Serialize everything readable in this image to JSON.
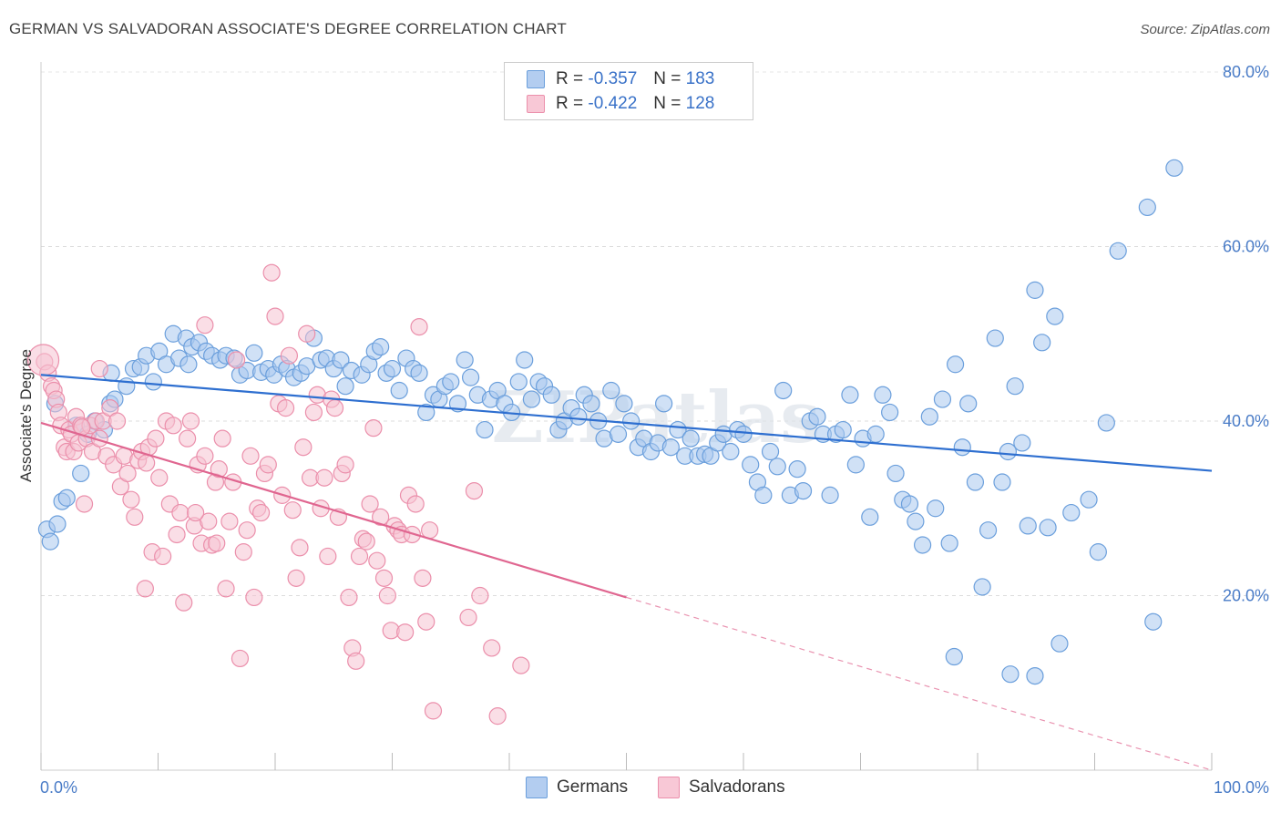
{
  "title": "GERMAN VS SALVADORAN ASSOCIATE'S DEGREE CORRELATION CHART",
  "source": "Source: ZipAtlas.com",
  "watermark": "ZIPatlas",
  "legend": {
    "germans": {
      "r_label": "R =",
      "r_value": "-0.357",
      "n_label": "N =",
      "n_value": "183"
    },
    "salvadorans": {
      "r_label": "R =",
      "r_value": "-0.422",
      "n_label": "N =",
      "n_value": "128"
    }
  },
  "colors": {
    "german_fill": "#a9c8ef",
    "german_stroke": "#6b9fdc",
    "german_line": "#2e6fd0",
    "salvadoran_fill": "#f6c2d1",
    "salvadoran_stroke": "#eb8fab",
    "salvadoran_line": "#e06690",
    "tick_text": "#4a7cc7"
  },
  "chart_data": {
    "type": "scatter",
    "title": "GERMAN VS SALVADORAN ASSOCIATE'S DEGREE CORRELATION CHART",
    "xlabel": "",
    "ylabel": "Associate's Degree",
    "xlim": [
      0,
      100
    ],
    "ylim": [
      0,
      80
    ],
    "x_tick_labels": [
      "0.0%",
      "100.0%"
    ],
    "y_ticks": [
      20,
      40,
      60,
      80
    ],
    "y_tick_labels": [
      "20.0%",
      "40.0%",
      "60.0%",
      "80.0%"
    ],
    "grid": "horizontal dashed",
    "legend_position": "top-center",
    "series": [
      {
        "name": "Germans",
        "trend": {
          "x": [
            0,
            100
          ],
          "y": [
            45.3,
            34.3
          ],
          "dashed_from_x": null
        },
        "points": [
          [
            0.5,
            27.6
          ],
          [
            0.8,
            26.2
          ],
          [
            1.4,
            28.2
          ],
          [
            1.8,
            30.8
          ],
          [
            2.2,
            31.2
          ],
          [
            3.0,
            39.5
          ],
          [
            3.4,
            34.0
          ],
          [
            4.0,
            38.5
          ],
          [
            4.6,
            40.0
          ],
          [
            5.4,
            39.0
          ],
          [
            5.9,
            42.0
          ],
          [
            6.3,
            42.5
          ],
          [
            7.3,
            44.0
          ],
          [
            7.9,
            46.0
          ],
          [
            8.5,
            46.2
          ],
          [
            9.0,
            47.5
          ],
          [
            9.6,
            44.5
          ],
          [
            10.1,
            48.0
          ],
          [
            10.7,
            46.5
          ],
          [
            11.3,
            50.0
          ],
          [
            11.8,
            47.2
          ],
          [
            12.4,
            49.5
          ],
          [
            12.9,
            48.5
          ],
          [
            13.5,
            49.0
          ],
          [
            14.1,
            48.0
          ],
          [
            14.6,
            47.5
          ],
          [
            15.3,
            47.0
          ],
          [
            15.8,
            47.5
          ],
          [
            16.5,
            47.2
          ],
          [
            17.0,
            45.3
          ],
          [
            17.6,
            45.8
          ],
          [
            18.2,
            47.8
          ],
          [
            18.8,
            45.6
          ],
          [
            19.4,
            46.0
          ],
          [
            19.9,
            45.3
          ],
          [
            20.5,
            46.5
          ],
          [
            21.0,
            46.0
          ],
          [
            21.6,
            45.0
          ],
          [
            22.2,
            45.5
          ],
          [
            22.7,
            46.3
          ],
          [
            23.3,
            49.5
          ],
          [
            23.9,
            47.0
          ],
          [
            24.4,
            47.2
          ],
          [
            25.0,
            46.0
          ],
          [
            25.6,
            47.0
          ],
          [
            26.0,
            44.0
          ],
          [
            26.5,
            45.8
          ],
          [
            27.4,
            45.3
          ],
          [
            28.0,
            46.5
          ],
          [
            28.5,
            48.0
          ],
          [
            29.0,
            48.5
          ],
          [
            29.5,
            45.5
          ],
          [
            30.0,
            46.0
          ],
          [
            30.6,
            43.5
          ],
          [
            31.2,
            47.2
          ],
          [
            31.8,
            46.0
          ],
          [
            32.3,
            45.5
          ],
          [
            32.9,
            41.0
          ],
          [
            33.5,
            43.0
          ],
          [
            34.0,
            42.5
          ],
          [
            34.5,
            44.0
          ],
          [
            35.0,
            44.5
          ],
          [
            35.6,
            42.0
          ],
          [
            36.2,
            47.0
          ],
          [
            36.7,
            45.0
          ],
          [
            37.3,
            43.0
          ],
          [
            37.9,
            39.0
          ],
          [
            38.4,
            42.5
          ],
          [
            39.0,
            43.5
          ],
          [
            39.6,
            42.0
          ],
          [
            40.2,
            41.0
          ],
          [
            40.8,
            44.5
          ],
          [
            41.3,
            47.0
          ],
          [
            41.9,
            42.5
          ],
          [
            42.5,
            44.5
          ],
          [
            43.0,
            44.0
          ],
          [
            43.6,
            43.0
          ],
          [
            44.2,
            39.0
          ],
          [
            44.7,
            40.0
          ],
          [
            45.3,
            41.5
          ],
          [
            45.9,
            40.5
          ],
          [
            46.4,
            43.0
          ],
          [
            47.0,
            42.0
          ],
          [
            47.6,
            40.0
          ],
          [
            48.1,
            38.0
          ],
          [
            48.7,
            43.5
          ],
          [
            49.3,
            38.5
          ],
          [
            49.8,
            42.0
          ],
          [
            50.4,
            40.0
          ],
          [
            51.0,
            37.0
          ],
          [
            51.5,
            38.0
          ],
          [
            52.1,
            36.5
          ],
          [
            52.7,
            37.5
          ],
          [
            53.2,
            42.0
          ],
          [
            53.8,
            37.0
          ],
          [
            54.4,
            39.0
          ],
          [
            55.0,
            36.0
          ],
          [
            55.5,
            38.0
          ],
          [
            56.1,
            36.0
          ],
          [
            56.7,
            36.2
          ],
          [
            57.2,
            36.0
          ],
          [
            57.8,
            37.5
          ],
          [
            58.3,
            38.5
          ],
          [
            58.9,
            36.5
          ],
          [
            59.5,
            39.0
          ],
          [
            60.0,
            38.5
          ],
          [
            60.6,
            35.0
          ],
          [
            61.2,
            33.0
          ],
          [
            61.7,
            31.5
          ],
          [
            62.3,
            36.5
          ],
          [
            62.9,
            34.8
          ],
          [
            63.4,
            43.5
          ],
          [
            64.0,
            31.5
          ],
          [
            64.6,
            34.5
          ],
          [
            65.1,
            32.0
          ],
          [
            65.7,
            40.0
          ],
          [
            66.3,
            40.5
          ],
          [
            66.8,
            38.5
          ],
          [
            67.4,
            31.5
          ],
          [
            67.9,
            38.5
          ],
          [
            68.5,
            39.0
          ],
          [
            69.1,
            43.0
          ],
          [
            69.6,
            35.0
          ],
          [
            70.2,
            38.0
          ],
          [
            70.8,
            29.0
          ],
          [
            71.3,
            38.5
          ],
          [
            71.9,
            43.0
          ],
          [
            72.5,
            41.0
          ],
          [
            73.0,
            34.0
          ],
          [
            73.6,
            31.0
          ],
          [
            74.2,
            30.5
          ],
          [
            74.7,
            28.5
          ],
          [
            75.3,
            25.8
          ],
          [
            75.9,
            40.5
          ],
          [
            76.4,
            30.0
          ],
          [
            77.0,
            42.5
          ],
          [
            77.6,
            26.0
          ],
          [
            78.1,
            46.5
          ],
          [
            78.7,
            37.0
          ],
          [
            79.2,
            42.0
          ],
          [
            79.8,
            33.0
          ],
          [
            80.4,
            21.0
          ],
          [
            80.9,
            27.5
          ],
          [
            81.5,
            49.5
          ],
          [
            82.1,
            33.0
          ],
          [
            82.6,
            36.5
          ],
          [
            83.2,
            44.0
          ],
          [
            83.8,
            37.5
          ],
          [
            84.3,
            28.0
          ],
          [
            84.9,
            55.0
          ],
          [
            85.5,
            49.0
          ],
          [
            86.0,
            27.8
          ],
          [
            86.6,
            52.0
          ],
          [
            87.0,
            14.5
          ],
          [
            88.0,
            29.5
          ],
          [
            89.5,
            31.0
          ],
          [
            90.3,
            25.0
          ],
          [
            91.0,
            39.8
          ],
          [
            92.0,
            59.5
          ],
          [
            94.5,
            64.5
          ],
          [
            95.0,
            17.0
          ],
          [
            96.8,
            69.0
          ],
          [
            78.0,
            13.0
          ],
          [
            82.8,
            11.0
          ],
          [
            84.9,
            10.8
          ],
          [
            1.2,
            42.0
          ],
          [
            6.0,
            45.5
          ],
          [
            12.6,
            46.5
          ]
        ]
      },
      {
        "name": "Salvadorans",
        "trend": {
          "x": [
            0,
            50
          ],
          "y": [
            39.8,
            19.8
          ],
          "dashed_from_x": 50,
          "dashed_to": [
            100,
            0
          ]
        },
        "points": [
          [
            0.3,
            46.8
          ],
          [
            0.6,
            45.5
          ],
          [
            0.9,
            44.0
          ],
          [
            1.1,
            43.5
          ],
          [
            1.3,
            42.5
          ],
          [
            1.5,
            41.0
          ],
          [
            1.7,
            39.5
          ],
          [
            2.0,
            37.0
          ],
          [
            2.2,
            36.5
          ],
          [
            2.4,
            39.0
          ],
          [
            2.6,
            38.5
          ],
          [
            2.8,
            36.5
          ],
          [
            3.0,
            40.5
          ],
          [
            3.2,
            37.5
          ],
          [
            3.4,
            39.5
          ],
          [
            3.7,
            30.5
          ],
          [
            3.9,
            38.0
          ],
          [
            4.2,
            39.5
          ],
          [
            4.4,
            36.5
          ],
          [
            4.7,
            40.0
          ],
          [
            5.0,
            46.0
          ],
          [
            5.3,
            40.0
          ],
          [
            5.6,
            36.0
          ],
          [
            5.9,
            41.5
          ],
          [
            6.2,
            35.0
          ],
          [
            6.5,
            40.0
          ],
          [
            6.8,
            32.5
          ],
          [
            7.1,
            36.0
          ],
          [
            7.4,
            34.0
          ],
          [
            7.7,
            31.0
          ],
          [
            8.0,
            29.0
          ],
          [
            8.3,
            35.5
          ],
          [
            8.6,
            36.5
          ],
          [
            8.9,
            20.8
          ],
          [
            9.2,
            37.0
          ],
          [
            9.5,
            25.0
          ],
          [
            9.8,
            38.0
          ],
          [
            10.1,
            33.5
          ],
          [
            10.4,
            24.5
          ],
          [
            10.7,
            40.0
          ],
          [
            11.0,
            30.5
          ],
          [
            11.3,
            39.5
          ],
          [
            11.6,
            27.0
          ],
          [
            11.9,
            29.5
          ],
          [
            12.2,
            19.2
          ],
          [
            12.5,
            38.0
          ],
          [
            12.8,
            40.0
          ],
          [
            13.1,
            28.0
          ],
          [
            13.4,
            35.0
          ],
          [
            13.7,
            26.0
          ],
          [
            14.0,
            36.0
          ],
          [
            14.3,
            28.5
          ],
          [
            14.6,
            25.8
          ],
          [
            14.9,
            33.0
          ],
          [
            15.2,
            34.5
          ],
          [
            15.5,
            38.0
          ],
          [
            15.8,
            20.8
          ],
          [
            16.1,
            28.5
          ],
          [
            16.4,
            33.0
          ],
          [
            16.7,
            47.0
          ],
          [
            17.0,
            12.8
          ],
          [
            17.3,
            25.0
          ],
          [
            17.6,
            27.5
          ],
          [
            17.9,
            36.0
          ],
          [
            18.2,
            19.8
          ],
          [
            18.5,
            30.0
          ],
          [
            18.8,
            29.5
          ],
          [
            19.1,
            34.0
          ],
          [
            19.4,
            35.0
          ],
          [
            19.7,
            57.0
          ],
          [
            20.0,
            52.0
          ],
          [
            20.3,
            42.0
          ],
          [
            20.6,
            31.5
          ],
          [
            20.9,
            41.5
          ],
          [
            21.2,
            47.5
          ],
          [
            21.5,
            29.8
          ],
          [
            21.8,
            22.0
          ],
          [
            22.1,
            25.5
          ],
          [
            22.4,
            37.0
          ],
          [
            22.7,
            50.0
          ],
          [
            23.0,
            33.5
          ],
          [
            23.3,
            41.0
          ],
          [
            23.6,
            43.0
          ],
          [
            23.9,
            30.0
          ],
          [
            24.2,
            33.5
          ],
          [
            24.5,
            24.5
          ],
          [
            24.8,
            42.5
          ],
          [
            25.1,
            41.5
          ],
          [
            25.4,
            29.0
          ],
          [
            25.7,
            34.0
          ],
          [
            26.0,
            35.0
          ],
          [
            26.3,
            19.8
          ],
          [
            26.6,
            14.0
          ],
          [
            26.9,
            12.5
          ],
          [
            27.2,
            24.5
          ],
          [
            27.5,
            26.5
          ],
          [
            27.8,
            26.2
          ],
          [
            28.1,
            30.5
          ],
          [
            28.4,
            39.2
          ],
          [
            28.7,
            24.0
          ],
          [
            29.0,
            29.0
          ],
          [
            29.3,
            22.0
          ],
          [
            29.6,
            20.0
          ],
          [
            29.9,
            16.0
          ],
          [
            30.2,
            28.0
          ],
          [
            30.5,
            27.5
          ],
          [
            30.8,
            27.0
          ],
          [
            31.1,
            15.8
          ],
          [
            31.4,
            31.5
          ],
          [
            31.7,
            27.0
          ],
          [
            32.0,
            30.5
          ],
          [
            32.3,
            50.8
          ],
          [
            32.6,
            22.0
          ],
          [
            32.9,
            17.0
          ],
          [
            33.2,
            27.5
          ],
          [
            33.5,
            6.8
          ],
          [
            36.5,
            17.5
          ],
          [
            37.0,
            32.0
          ],
          [
            37.5,
            20.0
          ],
          [
            38.5,
            14.0
          ],
          [
            39.0,
            6.2
          ],
          [
            41.0,
            12.0
          ],
          [
            15.0,
            26.0
          ],
          [
            9.0,
            35.2
          ],
          [
            5.0,
            38.0
          ],
          [
            3.5,
            39.3
          ],
          [
            13.2,
            29.5
          ],
          [
            14.0,
            51.0
          ]
        ]
      }
    ]
  }
}
